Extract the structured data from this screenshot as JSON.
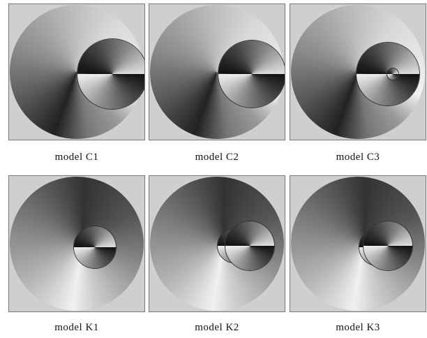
{
  "figure": {
    "panels": [
      {
        "caption": "model C1"
      },
      {
        "caption": "model C2"
      },
      {
        "caption": "model C3"
      },
      {
        "caption": "model K1"
      },
      {
        "caption": "model K2"
      },
      {
        "caption": "model K3"
      }
    ]
  }
}
